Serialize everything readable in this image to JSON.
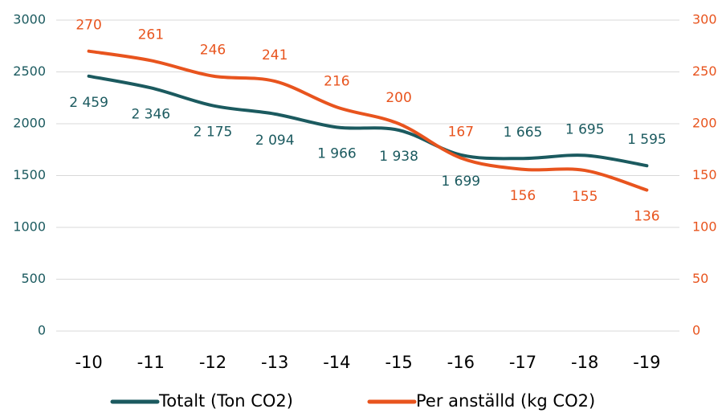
{
  "chart_data": {
    "type": "line",
    "categories": [
      "-10",
      "-11",
      "-12",
      "-13",
      "-14",
      "-15",
      "-16",
      "-17",
      "-18",
      "-19"
    ],
    "series": [
      {
        "name": "Totalt (Ton CO2)",
        "color": "#1b5a5f",
        "axis": "y",
        "values": [
          2459,
          2346,
          2175,
          2094,
          1966,
          1938,
          1699,
          1665,
          1695,
          1595
        ],
        "value_labels": [
          "2 459",
          "2 346",
          "2 175",
          "2 094",
          "1 966",
          "1 938",
          "1 699",
          "1 665",
          "1 695",
          "1 595"
        ]
      },
      {
        "name": "Per anställd (kg CO2)",
        "color": "#e8541e",
        "axis": "y2",
        "values": [
          270,
          261,
          246,
          241,
          216,
          200,
          167,
          156,
          155,
          136
        ]
      }
    ],
    "ylim": [
      0,
      3000
    ],
    "yticks": [
      0,
      500,
      1000,
      1500,
      2000,
      2500,
      3000
    ],
    "y2lim": [
      0,
      300
    ],
    "y2ticks": [
      0,
      50,
      100,
      150,
      200,
      250,
      300
    ],
    "grid": true,
    "smooth": true,
    "legend": "bottom"
  }
}
